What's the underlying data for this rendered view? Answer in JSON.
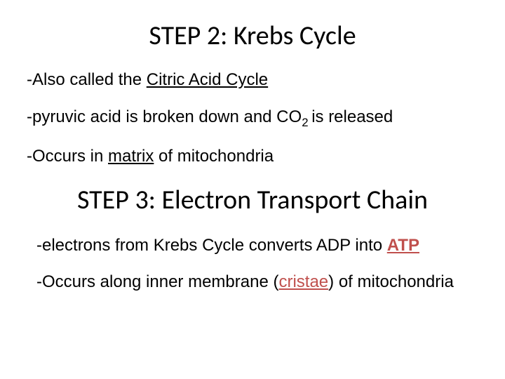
{
  "colors": {
    "background": "#ffffff",
    "text": "#000000",
    "accent": "#c0504d"
  },
  "typography": {
    "heading_font": "Calibri",
    "body_font": "Arial",
    "heading_size_pt": 38,
    "body_size_pt": 24
  },
  "step2": {
    "title": "STEP 2: Krebs Cycle",
    "line1_pre": "-Also called the ",
    "line1_underlined": "Citric Acid Cycle",
    "line2_pre": "-pyruvic acid is broken down and CO",
    "line2_sub": "2 ",
    "line2_post": "is released",
    "line3_pre": "-Occurs in ",
    "line3_underlined": "matrix",
    "line3_post": " of mitochondria"
  },
  "step3": {
    "title": "STEP 3: Electron Transport Chain",
    "line1_pre": "-electrons from Krebs Cycle converts ADP into ",
    "line1_accent": "ATP",
    "line2_pre": "-Occurs along inner membrane (",
    "line2_accent": "cristae",
    "line2_post": ") of mitochondria"
  }
}
